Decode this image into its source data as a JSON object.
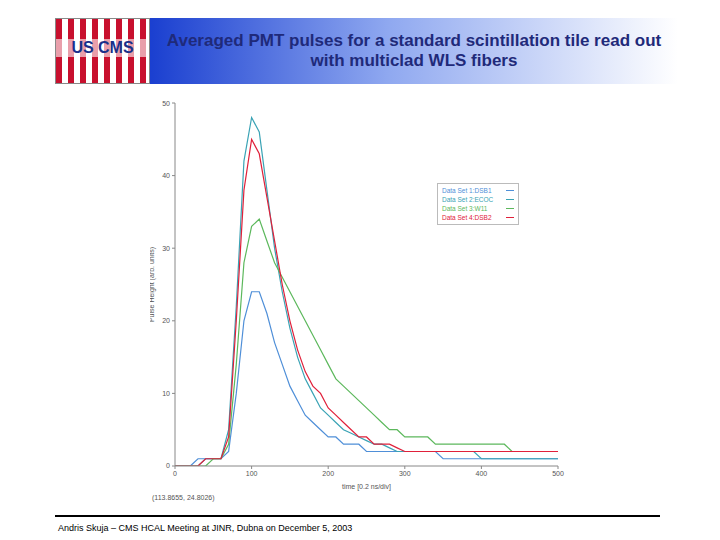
{
  "header": {
    "logo": "US CMS",
    "title": "Averaged PMT pulses for a standard scintillation tile read out with multiclad WLS fibers"
  },
  "footer": "Andris Skuja – CMS HCAL Meeting at JINR, Dubna on December 5, 2003",
  "chart_data": {
    "type": "line",
    "x_label": "time [0.2 ns/div]",
    "y_label": "Pulse Height (arb. units)",
    "annotation": "(113.8655, 24.8026)",
    "legend": "upper right",
    "xlim": [
      0,
      500
    ],
    "ylim": [
      0,
      50
    ],
    "xticks": [
      0,
      100,
      200,
      300,
      400,
      500
    ],
    "yticks": [
      0,
      10,
      20,
      30,
      40,
      50
    ],
    "x": [
      0,
      10,
      20,
      30,
      40,
      50,
      60,
      70,
      80,
      90,
      100,
      110,
      120,
      130,
      140,
      150,
      160,
      170,
      180,
      190,
      200,
      210,
      220,
      230,
      240,
      250,
      260,
      270,
      280,
      290,
      300,
      310,
      320,
      330,
      340,
      350,
      360,
      370,
      380,
      390,
      400,
      410,
      420,
      430,
      440,
      450,
      460,
      470,
      480,
      490,
      500
    ],
    "series": [
      {
        "name": "Data Set 1:DSB1",
        "color": "#4f8fd8",
        "values": [
          0,
          0,
          0,
          1,
          1,
          1,
          1,
          2,
          10,
          20,
          24,
          24,
          21,
          17,
          14,
          11,
          9,
          7,
          6,
          5,
          4,
          4,
          3,
          3,
          3,
          2,
          2,
          2,
          2,
          2,
          2,
          2,
          2,
          2,
          2,
          1,
          1,
          1,
          1,
          1,
          1,
          1,
          1,
          1,
          1,
          1,
          1,
          1,
          1,
          1,
          1
        ]
      },
      {
        "name": "Data Set 2:ECOC",
        "color": "#3aa3b5",
        "values": [
          0,
          0,
          0,
          0,
          1,
          1,
          1,
          5,
          22,
          42,
          48,
          46,
          38,
          30,
          24,
          19,
          15,
          12,
          10,
          8,
          7,
          6,
          5,
          4.5,
          4,
          3.5,
          3,
          3,
          2.5,
          2,
          2,
          2,
          2,
          2,
          2,
          2,
          2,
          2,
          2,
          2,
          1,
          1,
          1,
          1,
          1,
          1,
          1,
          1,
          1,
          1,
          1
        ]
      },
      {
        "name": "Data Set 3:W11",
        "color": "#5cb85c",
        "values": [
          0,
          0,
          0,
          0,
          0,
          1,
          1,
          3,
          14,
          28,
          33,
          34,
          31,
          28,
          26,
          24,
          22,
          20,
          18,
          16,
          14,
          12,
          11,
          10,
          9,
          8,
          7,
          6,
          5,
          5,
          4,
          4,
          4,
          4,
          3,
          3,
          3,
          3,
          3,
          3,
          3,
          3,
          3,
          3,
          2,
          2,
          2,
          2,
          2,
          2,
          2
        ]
      },
      {
        "name": "Data Set 4:DSB2",
        "color": "#e0203a",
        "values": [
          0,
          0,
          0,
          0,
          1,
          1,
          1,
          4,
          20,
          38,
          45,
          43,
          37,
          31,
          25,
          20,
          16,
          13,
          11,
          10,
          8,
          7,
          6,
          5,
          4,
          4,
          3,
          3,
          3,
          2.5,
          2,
          2,
          2,
          2,
          2,
          2,
          2,
          2,
          2,
          2,
          2,
          2,
          2,
          2,
          2,
          2,
          2,
          2,
          2,
          2,
          2
        ]
      }
    ]
  }
}
